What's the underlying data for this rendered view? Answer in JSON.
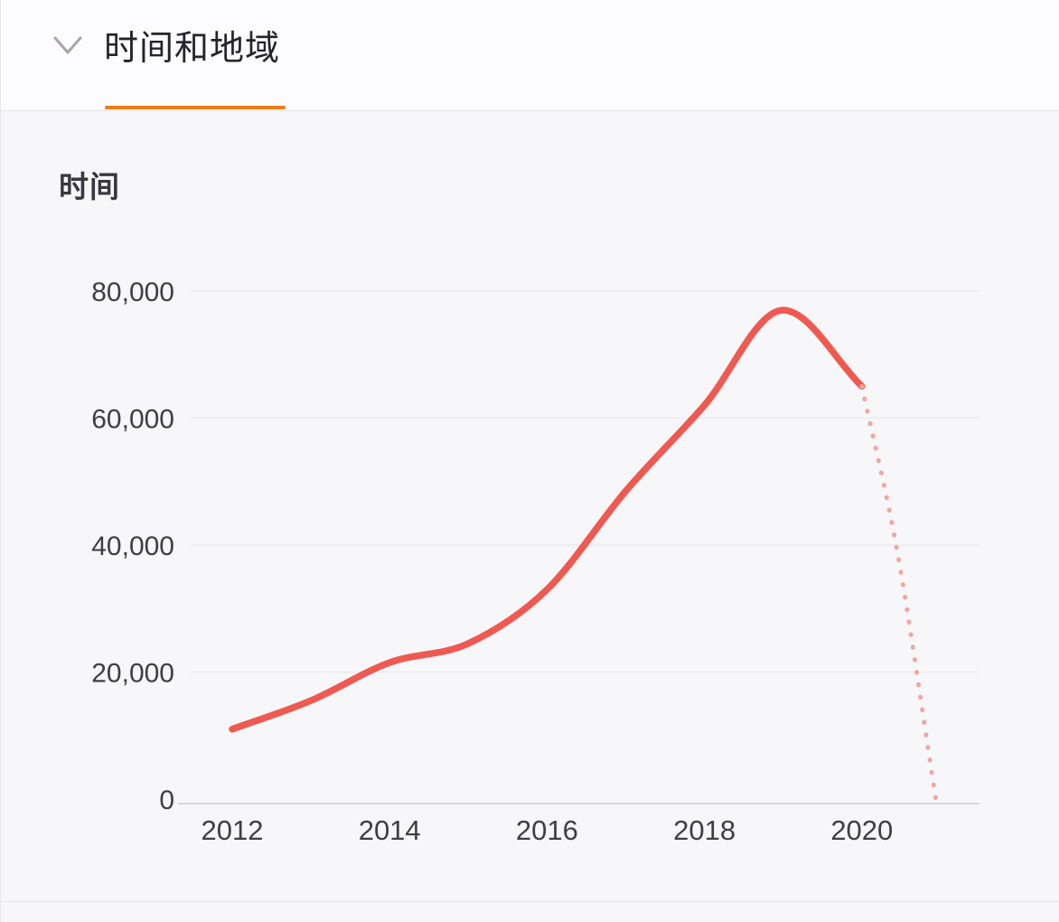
{
  "panel": {
    "header": {
      "title": "时间和地域"
    },
    "section_title": "时间"
  },
  "colors": {
    "accent_orange": "#ee7d15",
    "line": "#ee5a52",
    "projection": "#f0a7a3",
    "grid": "#ebebee",
    "axis": "#cdccd2",
    "tick_text": "#3f3e44",
    "chevron": "#aba5a5"
  },
  "chart_data": {
    "type": "line",
    "title": "时间",
    "xlabel": "",
    "ylabel": "",
    "smooth": true,
    "grid": true,
    "legend_position": "none",
    "ylim": [
      0,
      80000
    ],
    "x": [
      2012,
      2013,
      2014,
      2015,
      2016,
      2017,
      2018,
      2019,
      2020
    ],
    "values": [
      11000,
      15500,
      21500,
      24500,
      33000,
      48500,
      62000,
      77000,
      65000
    ],
    "projection": {
      "style": "dotted",
      "x": [
        2020,
        2020.45,
        2020.94
      ],
      "values": [
        65000,
        39000,
        0
      ]
    },
    "x_ticks": [
      {
        "value": 2012,
        "label": "2012"
      },
      {
        "value": 2014,
        "label": "2014"
      },
      {
        "value": 2016,
        "label": "2016"
      },
      {
        "value": 2018,
        "label": "2018"
      },
      {
        "value": 2020,
        "label": "2020"
      }
    ],
    "y_ticks": [
      {
        "value": 0,
        "label": "0"
      },
      {
        "value": 20000,
        "label": "20,000"
      },
      {
        "value": 40000,
        "label": "40,000"
      },
      {
        "value": 60000,
        "label": "60,000"
      },
      {
        "value": 80000,
        "label": "80,000"
      }
    ]
  }
}
